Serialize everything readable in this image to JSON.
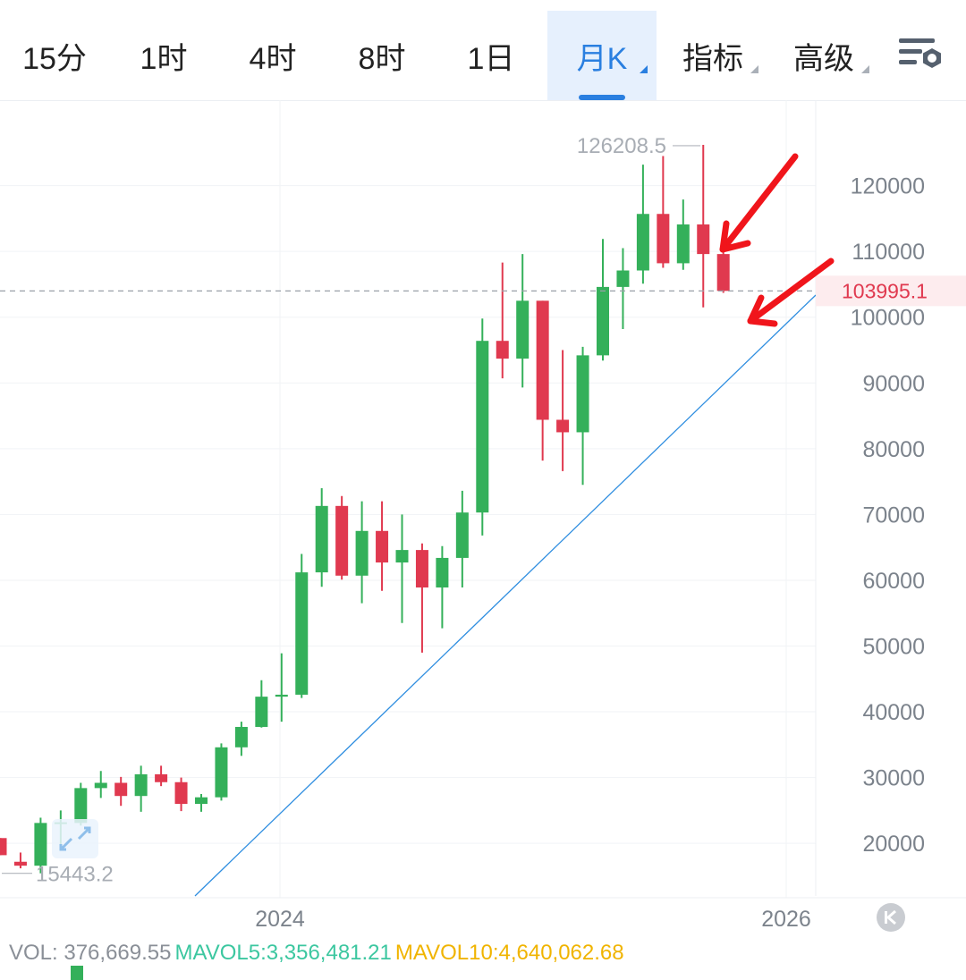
{
  "tabs": [
    {
      "label": "15分",
      "active": false,
      "dropdown": false
    },
    {
      "label": "1时",
      "active": false,
      "dropdown": false
    },
    {
      "label": "4时",
      "active": false,
      "dropdown": false
    },
    {
      "label": "8时",
      "active": false,
      "dropdown": false
    },
    {
      "label": "1日",
      "active": false,
      "dropdown": false
    },
    {
      "label": "月K",
      "active": true,
      "dropdown": true
    },
    {
      "label": "指标",
      "active": false,
      "dropdown": true
    },
    {
      "label": "高级",
      "active": false,
      "dropdown": true
    }
  ],
  "settings_icon": "chart-settings-icon",
  "chart_data": {
    "type": "candlestick",
    "ylim": [
      12000,
      133000
    ],
    "y_ticks": [
      "120000",
      "110000",
      "100000",
      "90000",
      "80000",
      "70000",
      "60000",
      "50000",
      "40000",
      "30000",
      "20000"
    ],
    "x_ticks": [
      "2024",
      "2026"
    ],
    "current_price": "103995.1",
    "high_label": "126208.5",
    "low_label": "15443.2",
    "trendline": {
      "from": [
        -18,
        0
      ],
      "to": [
        34,
        0
      ]
    },
    "candles": [
      {
        "o": 20800,
        "h": 20800,
        "l": 18200,
        "c": 18200
      },
      {
        "o": 17200,
        "h": 18600,
        "l": 16200,
        "c": 16600
      },
      {
        "o": 16600,
        "h": 23900,
        "l": 15443,
        "c": 23100
      },
      {
        "o": 23100,
        "h": 25000,
        "l": 19600,
        "c": 23200
      },
      {
        "o": 23100,
        "h": 29200,
        "l": 22700,
        "c": 28400
      },
      {
        "o": 28400,
        "h": 31000,
        "l": 26900,
        "c": 29200
      },
      {
        "o": 29200,
        "h": 30100,
        "l": 25700,
        "c": 27200
      },
      {
        "o": 27200,
        "h": 31800,
        "l": 24800,
        "c": 30500
      },
      {
        "o": 30500,
        "h": 31800,
        "l": 28700,
        "c": 29300
      },
      {
        "o": 29300,
        "h": 30000,
        "l": 24900,
        "c": 26000
      },
      {
        "o": 26000,
        "h": 27500,
        "l": 24800,
        "c": 27000
      },
      {
        "o": 27000,
        "h": 35200,
        "l": 26500,
        "c": 34600
      },
      {
        "o": 34600,
        "h": 38500,
        "l": 33300,
        "c": 37700
      },
      {
        "o": 37700,
        "h": 44800,
        "l": 37600,
        "c": 42300
      },
      {
        "o": 42300,
        "h": 48900,
        "l": 38500,
        "c": 42600
      },
      {
        "o": 42600,
        "h": 64000,
        "l": 42100,
        "c": 61200
      },
      {
        "o": 61200,
        "h": 74000,
        "l": 59000,
        "c": 71300
      },
      {
        "o": 71300,
        "h": 72800,
        "l": 60100,
        "c": 60700
      },
      {
        "o": 60700,
        "h": 72000,
        "l": 56500,
        "c": 67500
      },
      {
        "o": 67500,
        "h": 72000,
        "l": 58400,
        "c": 62700
      },
      {
        "o": 62700,
        "h": 70000,
        "l": 53500,
        "c": 64600
      },
      {
        "o": 64600,
        "h": 65600,
        "l": 49000,
        "c": 58900
      },
      {
        "o": 58900,
        "h": 65200,
        "l": 52700,
        "c": 63400
      },
      {
        "o": 63400,
        "h": 73600,
        "l": 58900,
        "c": 70300
      },
      {
        "o": 70300,
        "h": 99800,
        "l": 66800,
        "c": 96400
      },
      {
        "o": 96400,
        "h": 108300,
        "l": 90700,
        "c": 93700
      },
      {
        "o": 93700,
        "h": 109600,
        "l": 89300,
        "c": 102500
      },
      {
        "o": 102500,
        "h": 102500,
        "l": 78200,
        "c": 84400
      },
      {
        "o": 84400,
        "h": 95000,
        "l": 76600,
        "c": 82500
      },
      {
        "o": 82500,
        "h": 95500,
        "l": 74500,
        "c": 94200
      },
      {
        "o": 94200,
        "h": 111900,
        "l": 93400,
        "c": 104600
      },
      {
        "o": 104600,
        "h": 110500,
        "l": 98200,
        "c": 107100
      },
      {
        "o": 107100,
        "h": 123200,
        "l": 105100,
        "c": 115700
      },
      {
        "o": 115700,
        "h": 124500,
        "l": 107500,
        "c": 108200
      },
      {
        "o": 108200,
        "h": 117900,
        "l": 107200,
        "c": 114100
      },
      {
        "o": 114100,
        "h": 126208.5,
        "l": 101500,
        "c": 109600
      },
      {
        "o": 109600,
        "h": 111300,
        "l": 103700,
        "c": 103995.1
      }
    ]
  },
  "vol_row": {
    "vol": "VOL: 376,669.55",
    "mavol5": "MAVOL5:3,356,481.21",
    "mavol10": "MAVOL10:4,640,062.68"
  },
  "colors": {
    "up": "#34b05a",
    "down": "#e0394f",
    "trend": "#2f8ee0",
    "annotation": "#f0151b"
  }
}
